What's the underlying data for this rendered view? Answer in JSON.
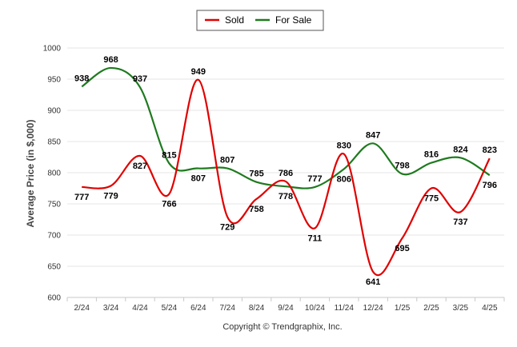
{
  "chart_data": {
    "type": "line",
    "categories": [
      "2/24",
      "3/24",
      "4/24",
      "5/24",
      "6/24",
      "7/24",
      "8/24",
      "9/24",
      "10/24",
      "11/24",
      "12/24",
      "1/25",
      "2/25",
      "3/25",
      "4/25"
    ],
    "series": [
      {
        "name": "Sold",
        "color": "#e10000",
        "values": [
          777,
          779,
          827,
          766,
          949,
          729,
          758,
          786,
          711,
          830,
          641,
          695,
          775,
          737,
          823
        ]
      },
      {
        "name": "For Sale",
        "color": "#1f7a1f",
        "values": [
          938,
          968,
          937,
          815,
          807,
          807,
          785,
          778,
          777,
          806,
          847,
          798,
          816,
          824,
          796
        ]
      }
    ],
    "ylabel": "Average Price (in $,000)",
    "xlabel": "",
    "ylim": [
      600,
      1000
    ],
    "yticks": [
      600,
      650,
      700,
      750,
      800,
      850,
      900,
      950,
      1000
    ],
    "grid": true,
    "legend": "top-center",
    "credit": "Copyright © Trendgraphix, Inc."
  }
}
